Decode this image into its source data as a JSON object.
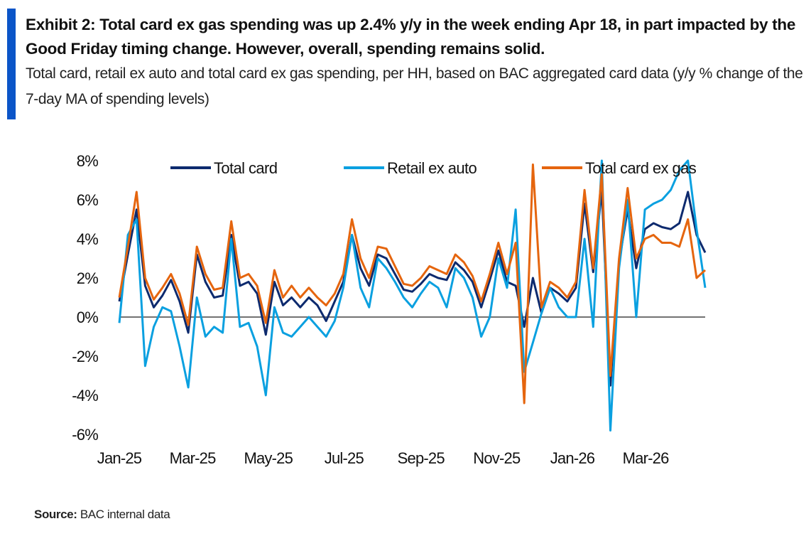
{
  "header": {
    "title": "Exhibit 2: Total card ex gas spending was up 2.4% y/y in the week ending Apr 18, in part impacted by the Good Friday timing change. However, overall, spending remains solid.",
    "subtitle": "Total card, retail ex auto and total card ex gas spending, per HH, based on BAC aggregated card data (y/y % change of the 7-day MA of spending levels)"
  },
  "footer": {
    "source_label": "Source:",
    "source_text": "BAC internal data"
  },
  "colors": {
    "accent_bar": "#0b55c8",
    "total_card": "#0d2a6e",
    "retail_ex_auto": "#0aa0e0",
    "total_card_ex_gas": "#e5650e"
  },
  "chart_data": {
    "type": "line",
    "title": "",
    "xlabel": "",
    "ylabel": "",
    "x_start": "2025-01-01",
    "x_end": "2026-04-18",
    "ylim": [
      -6,
      8
    ],
    "yticks": [
      8,
      6,
      4,
      2,
      0,
      -2,
      -4,
      -6
    ],
    "ytick_labels": [
      "8%",
      "6%",
      "4%",
      "2%",
      "0%",
      "-2%",
      "-4%",
      "-6%"
    ],
    "xtick_labels": [
      "Jan-25",
      "Mar-25",
      "May-25",
      "Jul-25",
      "Sep-25",
      "Nov-25",
      "Jan-26",
      "Mar-26"
    ],
    "xtick_days": [
      0,
      59,
      120,
      181,
      243,
      304,
      365,
      424
    ],
    "total_days": 472,
    "grid": false,
    "legend_position": "top",
    "series": [
      {
        "name": "Total card",
        "color": "#0d2a6e",
        "values": [
          0.8,
          3.2,
          5.5,
          1.6,
          0.5,
          1.1,
          1.9,
          0.8,
          -0.8,
          3.2,
          1.8,
          1.0,
          1.1,
          4.2,
          1.6,
          1.8,
          1.2,
          -0.9,
          1.8,
          0.6,
          1.0,
          0.5,
          1.0,
          0.6,
          -0.2,
          0.8,
          1.8,
          4.2,
          2.5,
          1.6,
          3.2,
          3.0,
          2.2,
          1.4,
          1.3,
          1.7,
          2.2,
          2.0,
          1.9,
          2.8,
          2.4,
          1.8,
          0.5,
          1.9,
          3.4,
          1.8,
          1.6,
          -0.5,
          2.0,
          0.2,
          1.5,
          1.2,
          0.8,
          1.5,
          5.8,
          2.3,
          6.5,
          -3.5,
          2.8,
          5.5,
          2.5,
          4.5,
          4.8,
          4.6,
          4.5,
          4.8,
          6.4,
          4.2,
          3.3
        ]
      },
      {
        "name": "Retail ex auto",
        "color": "#0aa0e0",
        "values": [
          -0.3,
          4.2,
          5.0,
          -2.5,
          -0.5,
          0.5,
          0.3,
          -1.5,
          -3.6,
          1.0,
          -1.0,
          -0.5,
          -0.8,
          4.0,
          -0.5,
          -0.3,
          -1.5,
          -4.0,
          0.5,
          -0.8,
          -1.0,
          -0.5,
          0.0,
          -0.5,
          -1.0,
          -0.2,
          1.5,
          4.2,
          1.5,
          0.5,
          3.0,
          2.5,
          1.8,
          1.0,
          0.5,
          1.2,
          1.8,
          1.5,
          0.5,
          2.5,
          2.0,
          1.0,
          -1.0,
          0.0,
          3.0,
          1.5,
          5.5,
          -2.8,
          -1.3,
          0.2,
          1.5,
          0.5,
          0.0,
          0.0,
          4.0,
          -0.5,
          8.0,
          -5.8,
          2.5,
          6.0,
          0.0,
          5.5,
          5.8,
          6.0,
          6.5,
          7.5,
          8.0,
          4.5,
          1.5
        ]
      },
      {
        "name": "Total card ex gas",
        "color": "#e5650e",
        "values": [
          1.0,
          3.6,
          6.4,
          2.0,
          0.9,
          1.5,
          2.2,
          1.2,
          -0.4,
          3.6,
          2.2,
          1.4,
          1.5,
          4.9,
          2.0,
          2.2,
          1.6,
          -0.3,
          2.4,
          1.0,
          1.6,
          1.0,
          1.5,
          1.0,
          0.6,
          1.2,
          2.2,
          5.0,
          3.0,
          2.0,
          3.6,
          3.5,
          2.6,
          1.7,
          1.6,
          2.0,
          2.6,
          2.4,
          2.2,
          3.2,
          2.8,
          2.1,
          0.8,
          2.2,
          3.8,
          2.2,
          3.8,
          -4.4,
          7.8,
          0.5,
          1.8,
          1.5,
          1.0,
          1.8,
          6.5,
          2.5,
          7.3,
          -3.0,
          3.0,
          6.6,
          3.0,
          4.0,
          4.2,
          3.8,
          3.8,
          3.6,
          5.0,
          2.0,
          2.4
        ]
      }
    ]
  }
}
